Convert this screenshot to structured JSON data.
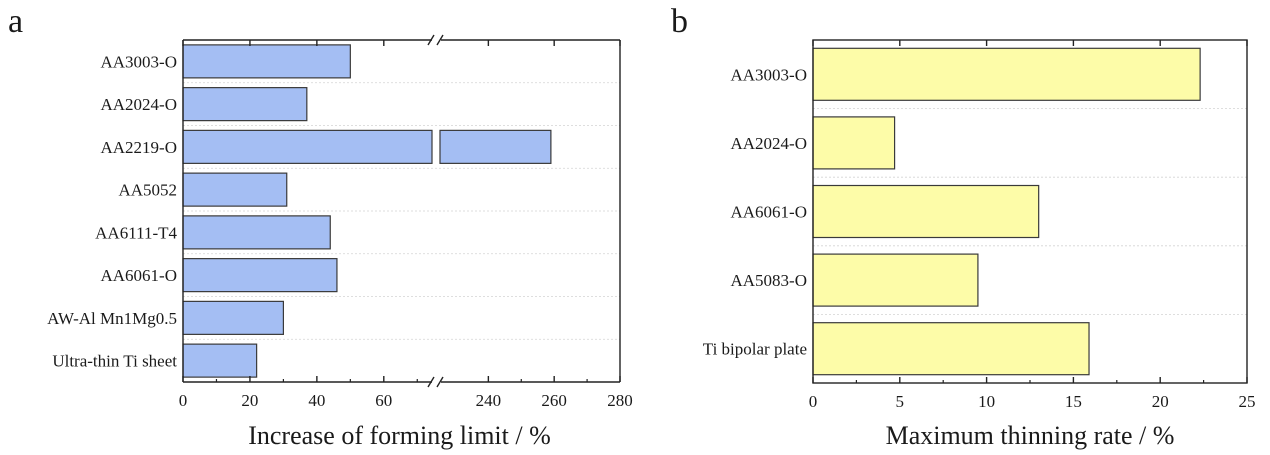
{
  "chart_data": [
    {
      "panel": "a",
      "type": "bar",
      "orientation": "horizontal",
      "categories": [
        "AA3003-O",
        "AA2024-O",
        "AA2219-O",
        "AA5052",
        "AA6111-T4",
        "AA6061-O",
        "AW-Al Mn1Mg0.5",
        "Ultra-thin Ti sheet"
      ],
      "values": [
        50,
        37,
        259,
        31,
        44,
        46,
        30,
        22
      ],
      "xlabel": "Increase of forming limit / %",
      "ylabel": "",
      "x_segments": [
        [
          0,
          75
        ],
        [
          225,
          280
        ]
      ],
      "ticks": [
        "0",
        "20",
        "40",
        "60",
        "240",
        "260",
        "280"
      ],
      "tick_values": [
        0,
        20,
        40,
        60,
        240,
        260,
        280
      ],
      "axis_break": true,
      "bar_color": "#a4bef3",
      "grid": "dashed horizontal"
    },
    {
      "panel": "b",
      "type": "bar",
      "orientation": "horizontal",
      "categories": [
        "AA3003-O",
        "AA2024-O",
        "AA6061-O",
        "AA5083-O",
        "Ti bipolar plate"
      ],
      "values": [
        22.3,
        4.7,
        13.0,
        9.5,
        15.9
      ],
      "xlabel": "Maximum thinning rate / %",
      "ylabel": "",
      "xlim": [
        0,
        25
      ],
      "ticks": [
        "0",
        "5",
        "10",
        "15",
        "20",
        "25"
      ],
      "tick_values": [
        0,
        5,
        10,
        15,
        20,
        25
      ],
      "bar_color": "#fdfca8",
      "grid": "dashed horizontal"
    }
  ]
}
